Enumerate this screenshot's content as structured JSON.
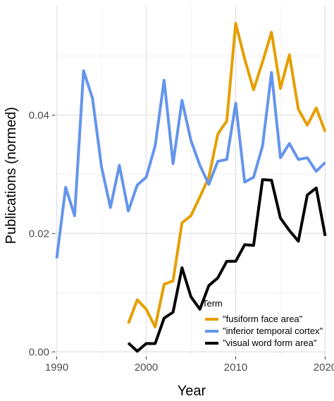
{
  "chart_data": {
    "type": "line",
    "xlabel": "Year",
    "ylabel": "Publications (normed)",
    "xlim": [
      1989.8,
      2020.2
    ],
    "ylim": [
      -0.0008,
      0.0585
    ],
    "xticks": [
      1990,
      2000,
      2010,
      2020
    ],
    "yticks": [
      0.0,
      0.02,
      0.04
    ],
    "xtick_labels": [
      "1990",
      "2000",
      "2010",
      "2020"
    ],
    "ytick_labels": [
      "0.00",
      "0.02",
      "0.04"
    ],
    "grid": true,
    "legend": {
      "title": "Term",
      "position": "bottom-right"
    },
    "series": [
      {
        "name": "\"fusiform face area\"",
        "color": "#E69F00",
        "x": [
          1998,
          1999,
          2000,
          2001,
          2002,
          2003,
          2004,
          2005,
          2006,
          2007,
          2008,
          2009,
          2010,
          2011,
          2012,
          2013,
          2014,
          2015,
          2016,
          2017,
          2018,
          2019,
          2020
        ],
        "y": [
          0.0048,
          0.0088,
          0.0072,
          0.0042,
          0.0114,
          0.012,
          0.0218,
          0.023,
          0.0262,
          0.0295,
          0.0368,
          0.039,
          0.0555,
          0.0495,
          0.0443,
          0.049,
          0.054,
          0.0445,
          0.0502,
          0.041,
          0.0383,
          0.0412,
          0.0372
        ]
      },
      {
        "name": "\"inferior temporal cortex\"",
        "color": "#6495ED",
        "x": [
          1990,
          1991,
          1992,
          1993,
          1994,
          1995,
          1996,
          1997,
          1998,
          1999,
          2000,
          2001,
          2002,
          2003,
          2004,
          2005,
          2006,
          2007,
          2008,
          2009,
          2010,
          2011,
          2012,
          2013,
          2014,
          2015,
          2016,
          2017,
          2018,
          2019,
          2020
        ],
        "y": [
          0.0158,
          0.0278,
          0.023,
          0.0475,
          0.0428,
          0.0313,
          0.0244,
          0.0315,
          0.0238,
          0.0282,
          0.0295,
          0.0348,
          0.0459,
          0.0318,
          0.0425,
          0.0357,
          0.0315,
          0.0283,
          0.0322,
          0.0325,
          0.042,
          0.0287,
          0.0295,
          0.0348,
          0.0472,
          0.0328,
          0.0352,
          0.0325,
          0.0328,
          0.0305,
          0.032
        ]
      },
      {
        "name": "\"visual word form area\"",
        "color": "#000000",
        "x": [
          1998,
          1999,
          2000,
          2001,
          2002,
          2003,
          2004,
          2005,
          2006,
          2007,
          2008,
          2009,
          2010,
          2011,
          2012,
          2013,
          2014,
          2015,
          2016,
          2017,
          2018,
          2019,
          2020
        ],
        "y": [
          0.0015,
          0.0001,
          0.0014,
          0.0014,
          0.0057,
          0.0067,
          0.0142,
          0.0093,
          0.0072,
          0.0112,
          0.0125,
          0.0153,
          0.0153,
          0.0181,
          0.018,
          0.0291,
          0.029,
          0.0226,
          0.0205,
          0.0187,
          0.0265,
          0.0277,
          0.0196
        ]
      }
    ]
  }
}
